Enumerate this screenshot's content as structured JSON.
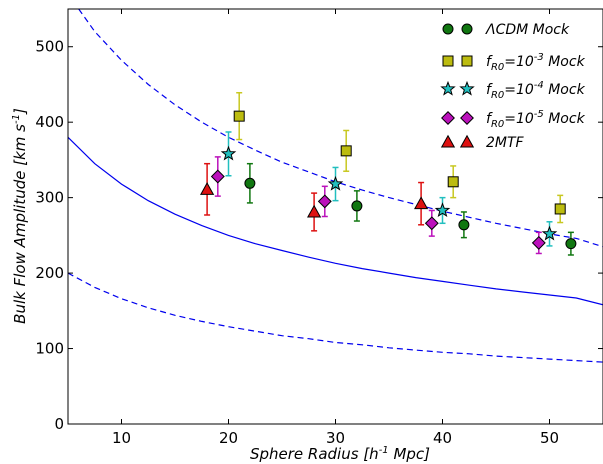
{
  "chart_data": {
    "type": "scatter",
    "xlabel": {
      "main": "Sphere Radius [h",
      "sup": "-1",
      "tail": " Mpc]"
    },
    "ylabel": {
      "main": "Bulk Flow Amplitude [km s",
      "sup": "-1",
      "tail": "]"
    },
    "xlim": [
      5,
      55
    ],
    "ylim": [
      0,
      550
    ],
    "xticks": [
      10,
      20,
      30,
      40,
      50
    ],
    "yticks": [
      0,
      100,
      200,
      300,
      400,
      500
    ],
    "grid": false,
    "legend_position": "top-right",
    "series": [
      {
        "name": {
          "main": "ΛCDM Mock",
          "sub": "",
          "mid": "",
          "sup": "",
          "tail": ""
        },
        "marker": "circle",
        "color": "#117711",
        "error_color": "#117711",
        "points": [
          {
            "x": 22,
            "y": 319,
            "err": 26
          },
          {
            "x": 32,
            "y": 289,
            "err": 20
          },
          {
            "x": 42,
            "y": 264,
            "err": 17
          },
          {
            "x": 52,
            "y": 239,
            "err": 15
          }
        ]
      },
      {
        "name": {
          "main": "f",
          "sub": "R0",
          "mid": "=10",
          "sup": "-3",
          "tail": " Mock"
        },
        "marker": "square",
        "color": "#bcbc10",
        "error_color": "#c8c820",
        "points": [
          {
            "x": 21,
            "y": 408,
            "err": 31
          },
          {
            "x": 31,
            "y": 362,
            "err": 27
          },
          {
            "x": 41,
            "y": 321,
            "err": 21
          },
          {
            "x": 51,
            "y": 285,
            "err": 18
          }
        ]
      },
      {
        "name": {
          "main": "f",
          "sub": "R0",
          "mid": "=10",
          "sup": "-4",
          "tail": " Mock"
        },
        "marker": "star",
        "color": "#22bfbf",
        "error_color": "#22bfbf",
        "points": [
          {
            "x": 20,
            "y": 358,
            "err": 29
          },
          {
            "x": 30,
            "y": 318,
            "err": 22
          },
          {
            "x": 40,
            "y": 283,
            "err": 17
          },
          {
            "x": 50,
            "y": 252,
            "err": 16
          }
        ]
      },
      {
        "name": {
          "main": "f",
          "sub": "R0",
          "mid": "=10",
          "sup": "-5",
          "tail": " Mock"
        },
        "marker": "diamond",
        "color": "#bb11bb",
        "error_color": "#bb11bb",
        "points": [
          {
            "x": 19,
            "y": 328,
            "err": 26
          },
          {
            "x": 29,
            "y": 295,
            "err": 20
          },
          {
            "x": 39,
            "y": 266,
            "err": 17
          },
          {
            "x": 49,
            "y": 240,
            "err": 14
          }
        ]
      },
      {
        "name": {
          "main": "2MTF",
          "sub": "",
          "mid": "",
          "sup": "",
          "tail": ""
        },
        "marker": "triangle",
        "color": "#dd1111",
        "error_color": "#dd1111",
        "points": [
          {
            "x": 18,
            "y": 311,
            "err": 34
          },
          {
            "x": 28,
            "y": 281,
            "err": 25
          },
          {
            "x": 38,
            "y": 292,
            "err": 28
          }
        ]
      }
    ],
    "curves": [
      {
        "role": "theory-mean",
        "style": "solid",
        "color": "#0000ee",
        "x": [
          5,
          7.5,
          10,
          12.5,
          15,
          17.5,
          20,
          22.5,
          25,
          27.5,
          30,
          32.5,
          35,
          37.5,
          40,
          42.5,
          45,
          47.5,
          50,
          52.5,
          55
        ],
        "y": [
          380,
          345,
          318,
          296,
          278,
          263,
          250,
          239,
          230,
          221,
          213,
          206,
          200,
          194,
          189,
          184,
          179,
          175,
          171,
          167,
          158
        ]
      },
      {
        "role": "upper-bound",
        "style": "dashed",
        "color": "#0000ee",
        "x": [
          6,
          7.5,
          10,
          12.5,
          15,
          17.5,
          20,
          22.5,
          25,
          27.5,
          30,
          32.5,
          35,
          37.5,
          40,
          42.5,
          45,
          47.5,
          50,
          52.5,
          55
        ],
        "y": [
          550,
          520,
          482,
          450,
          423,
          400,
          380,
          363,
          347,
          334,
          321,
          310,
          300,
          291,
          282,
          274,
          266,
          259,
          252,
          246,
          235
        ]
      },
      {
        "role": "lower-bound",
        "style": "dashed",
        "color": "#0000ee",
        "x": [
          5,
          7.5,
          10,
          12.5,
          15,
          17.5,
          20,
          22.5,
          25,
          27.5,
          30,
          32.5,
          35,
          37.5,
          40,
          42.5,
          45,
          47.5,
          50,
          52.5,
          55
        ],
        "y": [
          200,
          181,
          166,
          154,
          144,
          136,
          129,
          123,
          117,
          113,
          108,
          105,
          101,
          98,
          95,
          93,
          90,
          88,
          86,
          84,
          82
        ]
      }
    ]
  }
}
